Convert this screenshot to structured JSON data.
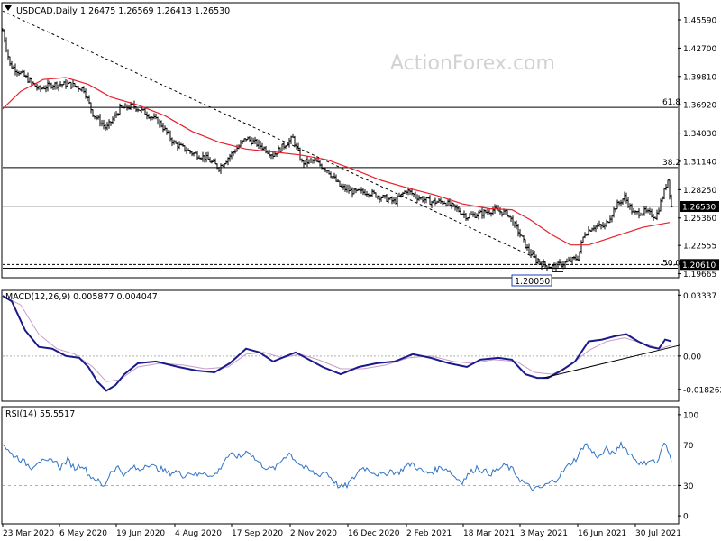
{
  "chart_data": [
    {
      "type": "candlestick",
      "title": "USDCAD,Daily",
      "ohlc_text": "1.26475 1.26569 1.26413 1.26530",
      "watermark": "ActionForex.com",
      "y_ticks": [
        "1.45590",
        "1.42700",
        "1.39810",
        "1.36920",
        "1.34030",
        "1.31140",
        "1.28250",
        "1.25360",
        "1.22555",
        "1.19665"
      ],
      "ylim": [
        1.1935,
        1.4725
      ],
      "last_price": "1.26530",
      "support_label": "1.20610",
      "low_marker": "1.20050",
      "fib_levels": [
        {
          "label": "61.8",
          "value": 1.3665
        },
        {
          "label": "38.2",
          "value": 1.305
        },
        {
          "label": "50.0",
          "value": 1.2022
        }
      ],
      "x_ticks": [
        "23 Mar 2020",
        "6 May 2020",
        "19 Jun 2020",
        "4 Aug 2020",
        "17 Sep 2020",
        "2 Nov 2020",
        "16 Dec 2020",
        "2 Feb 2021",
        "18 Mar 2021",
        "3 May 2021",
        "16 Jun 2021",
        "30 Jul 2021"
      ],
      "price_path": [
        [
          0,
          1.445
        ],
        [
          8,
          1.41
        ],
        [
          22,
          1.4
        ],
        [
          40,
          1.385
        ],
        [
          55,
          1.39
        ],
        [
          75,
          1.39
        ],
        [
          90,
          1.385
        ],
        [
          100,
          1.36
        ],
        [
          115,
          1.345
        ],
        [
          130,
          1.365
        ],
        [
          145,
          1.368
        ],
        [
          160,
          1.36
        ],
        [
          175,
          1.35
        ],
        [
          190,
          1.33
        ],
        [
          210,
          1.32
        ],
        [
          225,
          1.315
        ],
        [
          240,
          1.305
        ],
        [
          255,
          1.32
        ],
        [
          270,
          1.335
        ],
        [
          285,
          1.328
        ],
        [
          300,
          1.318
        ],
        [
          315,
          1.33
        ],
        [
          322,
          1.335
        ],
        [
          332,
          1.31
        ],
        [
          345,
          1.312
        ],
        [
          360,
          1.303
        ],
        [
          375,
          1.285
        ],
        [
          390,
          1.28
        ],
        [
          405,
          1.28
        ],
        [
          420,
          1.275
        ],
        [
          435,
          1.27
        ],
        [
          448,
          1.282
        ],
        [
          460,
          1.275
        ],
        [
          475,
          1.27
        ],
        [
          490,
          1.27
        ],
        [
          505,
          1.262
        ],
        [
          515,
          1.255
        ],
        [
          530,
          1.258
        ],
        [
          545,
          1.262
        ],
        [
          560,
          1.258
        ],
        [
          572,
          1.24
        ],
        [
          582,
          1.222
        ],
        [
          592,
          1.21
        ],
        [
          602,
          1.205
        ],
        [
          612,
          1.204
        ],
        [
          625,
          1.208
        ],
        [
          638,
          1.213
        ],
        [
          645,
          1.237
        ],
        [
          655,
          1.245
        ],
        [
          668,
          1.245
        ],
        [
          680,
          1.265
        ],
        [
          690,
          1.275
        ],
        [
          700,
          1.258
        ],
        [
          712,
          1.26
        ],
        [
          725,
          1.255
        ],
        [
          733,
          1.278
        ],
        [
          738,
          1.293
        ],
        [
          742,
          1.265
        ]
      ],
      "ma_path": [
        [
          0,
          1.365
        ],
        [
          20,
          1.383
        ],
        [
          45,
          1.395
        ],
        [
          70,
          1.397
        ],
        [
          95,
          1.39
        ],
        [
          120,
          1.377
        ],
        [
          150,
          1.369
        ],
        [
          180,
          1.358
        ],
        [
          210,
          1.342
        ],
        [
          240,
          1.331
        ],
        [
          270,
          1.324
        ],
        [
          300,
          1.321
        ],
        [
          330,
          1.318
        ],
        [
          360,
          1.313
        ],
        [
          390,
          1.303
        ],
        [
          420,
          1.292
        ],
        [
          450,
          1.284
        ],
        [
          480,
          1.277
        ],
        [
          510,
          1.268
        ],
        [
          540,
          1.263
        ],
        [
          565,
          1.262
        ],
        [
          585,
          1.252
        ],
        [
          610,
          1.236
        ],
        [
          630,
          1.226
        ],
        [
          650,
          1.226
        ],
        [
          680,
          1.235
        ],
        [
          710,
          1.244
        ],
        [
          740,
          1.249
        ]
      ],
      "trendline": [
        [
          0,
          1.465
        ],
        [
          600,
          1.209
        ]
      ],
      "support_level": 1.2061
    },
    {
      "type": "line",
      "title": "MACD(12,26,9) 0.005877 0.004047",
      "y_ticks": [
        "0.03337",
        "0.00",
        "-0.018262"
      ],
      "ylim": [
        -0.0243,
        0.0355
      ],
      "macd_path": [
        [
          0,
          0.033
        ],
        [
          10,
          0.03
        ],
        [
          25,
          0.014
        ],
        [
          40,
          0.005
        ],
        [
          55,
          0.004
        ],
        [
          70,
          0.0
        ],
        [
          85,
          -0.001
        ],
        [
          95,
          -0.006
        ],
        [
          105,
          -0.014
        ],
        [
          115,
          -0.019
        ],
        [
          125,
          -0.016
        ],
        [
          135,
          -0.01
        ],
        [
          150,
          -0.004
        ],
        [
          170,
          -0.003
        ],
        [
          195,
          -0.006
        ],
        [
          215,
          -0.008
        ],
        [
          235,
          -0.009
        ],
        [
          252,
          -0.004
        ],
        [
          270,
          0.004
        ],
        [
          285,
          0.002
        ],
        [
          300,
          -0.003
        ],
        [
          315,
          0.0
        ],
        [
          325,
          0.002
        ],
        [
          340,
          -0.002
        ],
        [
          355,
          -0.006
        ],
        [
          375,
          -0.01
        ],
        [
          395,
          -0.006
        ],
        [
          415,
          -0.004
        ],
        [
          435,
          -0.003
        ],
        [
          455,
          0.001
        ],
        [
          475,
          -0.001
        ],
        [
          495,
          -0.004
        ],
        [
          515,
          -0.006
        ],
        [
          530,
          -0.002
        ],
        [
          550,
          -0.001
        ],
        [
          565,
          -0.002
        ],
        [
          580,
          -0.01
        ],
        [
          593,
          -0.012
        ],
        [
          605,
          -0.012
        ],
        [
          620,
          -0.008
        ],
        [
          635,
          -0.003
        ],
        [
          650,
          0.008
        ],
        [
          665,
          0.009
        ],
        [
          680,
          0.011
        ],
        [
          692,
          0.012
        ],
        [
          705,
          0.008
        ],
        [
          718,
          0.005
        ],
        [
          728,
          0.004
        ],
        [
          735,
          0.009
        ],
        [
          742,
          0.008
        ]
      ],
      "signal_path": [
        [
          0,
          0.033
        ],
        [
          20,
          0.028
        ],
        [
          40,
          0.012
        ],
        [
          60,
          0.004
        ],
        [
          80,
          0.001
        ],
        [
          100,
          -0.006
        ],
        [
          115,
          -0.014
        ],
        [
          130,
          -0.013
        ],
        [
          150,
          -0.006
        ],
        [
          175,
          -0.004
        ],
        [
          200,
          -0.005
        ],
        [
          225,
          -0.007
        ],
        [
          250,
          -0.006
        ],
        [
          270,
          0.001
        ],
        [
          290,
          0.002
        ],
        [
          310,
          -0.001
        ],
        [
          330,
          0.001
        ],
        [
          350,
          -0.002
        ],
        [
          375,
          -0.007
        ],
        [
          400,
          -0.007
        ],
        [
          425,
          -0.005
        ],
        [
          450,
          -0.001
        ],
        [
          475,
          0.0
        ],
        [
          500,
          -0.003
        ],
        [
          520,
          -0.004
        ],
        [
          545,
          -0.002
        ],
        [
          570,
          -0.003
        ],
        [
          590,
          -0.009
        ],
        [
          610,
          -0.01
        ],
        [
          630,
          -0.005
        ],
        [
          650,
          0.003
        ],
        [
          670,
          0.008
        ],
        [
          690,
          0.01
        ],
        [
          710,
          0.007
        ],
        [
          730,
          0.004
        ],
        [
          742,
          0.006
        ]
      ],
      "trendline": [
        [
          600,
          -0.012
        ],
        [
          752,
          0.006
        ]
      ]
    },
    {
      "type": "line",
      "title": "RSI(14) 55.5517",
      "y_ticks": [
        "100",
        "70",
        "30",
        "0"
      ],
      "ylim": [
        -7,
        107
      ],
      "levels": [
        70,
        30
      ],
      "rsi_path": [
        [
          0,
          72
        ],
        [
          8,
          62
        ],
        [
          16,
          58
        ],
        [
          24,
          53
        ],
        [
          32,
          48
        ],
        [
          40,
          55
        ],
        [
          48,
          52
        ],
        [
          56,
          56
        ],
        [
          64,
          48
        ],
        [
          72,
          55
        ],
        [
          80,
          47
        ],
        [
          88,
          51
        ],
        [
          96,
          40
        ],
        [
          104,
          36
        ],
        [
          112,
          28
        ],
        [
          120,
          44
        ],
        [
          128,
          48
        ],
        [
          136,
          40
        ],
        [
          144,
          48
        ],
        [
          152,
          45
        ],
        [
          160,
          52
        ],
        [
          168,
          48
        ],
        [
          176,
          46
        ],
        [
          184,
          42
        ],
        [
          192,
          44
        ],
        [
          200,
          40
        ],
        [
          208,
          43
        ],
        [
          216,
          40
        ],
        [
          224,
          44
        ],
        [
          232,
          38
        ],
        [
          240,
          45
        ],
        [
          248,
          58
        ],
        [
          256,
          60
        ],
        [
          264,
          58
        ],
        [
          272,
          65
        ],
        [
          280,
          56
        ],
        [
          288,
          50
        ],
        [
          296,
          46
        ],
        [
          304,
          48
        ],
        [
          312,
          58
        ],
        [
          318,
          62
        ],
        [
          326,
          54
        ],
        [
          334,
          48
        ],
        [
          342,
          44
        ],
        [
          350,
          40
        ],
        [
          358,
          44
        ],
        [
          366,
          36
        ],
        [
          374,
          28
        ],
        [
          382,
          30
        ],
        [
          390,
          38
        ],
        [
          398,
          48
        ],
        [
          406,
          46
        ],
        [
          414,
          42
        ],
        [
          422,
          40
        ],
        [
          430,
          45
        ],
        [
          438,
          42
        ],
        [
          446,
          48
        ],
        [
          454,
          52
        ],
        [
          462,
          46
        ],
        [
          470,
          42
        ],
        [
          478,
          44
        ],
        [
          486,
          48
        ],
        [
          494,
          46
        ],
        [
          502,
          38
        ],
        [
          510,
          34
        ],
        [
          518,
          42
        ],
        [
          526,
          48
        ],
        [
          534,
          44
        ],
        [
          542,
          42
        ],
        [
          550,
          46
        ],
        [
          558,
          50
        ],
        [
          566,
          45
        ],
        [
          574,
          36
        ],
        [
          582,
          30
        ],
        [
          590,
          26
        ],
        [
          598,
          28
        ],
        [
          606,
          32
        ],
        [
          614,
          36
        ],
        [
          622,
          44
        ],
        [
          630,
          52
        ],
        [
          638,
          58
        ],
        [
          646,
          72
        ],
        [
          654,
          63
        ],
        [
          662,
          58
        ],
        [
          670,
          66
        ],
        [
          678,
          60
        ],
        [
          686,
          72
        ],
        [
          694,
          63
        ],
        [
          702,
          56
        ],
        [
          710,
          50
        ],
        [
          718,
          56
        ],
        [
          726,
          52
        ],
        [
          734,
          72
        ],
        [
          742,
          56
        ]
      ]
    }
  ]
}
